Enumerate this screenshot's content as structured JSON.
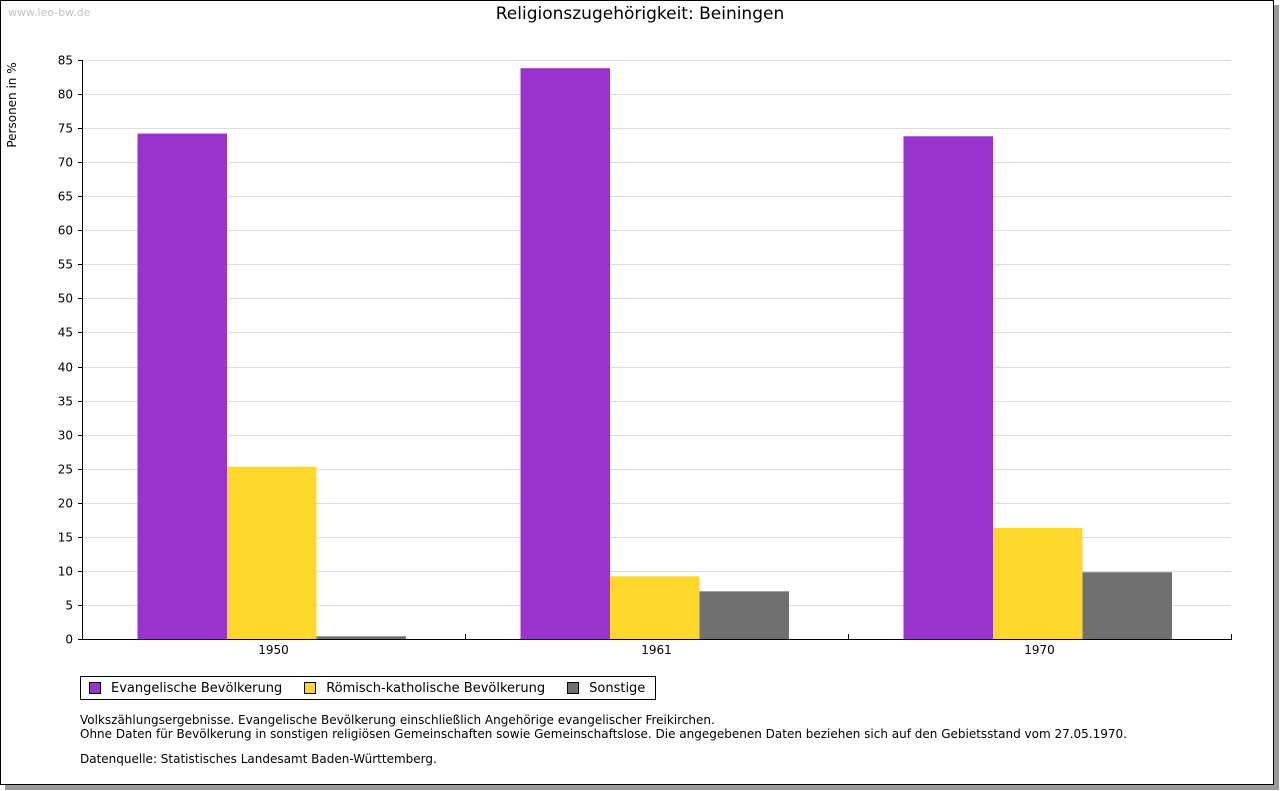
{
  "watermark": "www.leo-bw.de",
  "colors": {
    "evangelisch": "#9933cc",
    "katholisch": "#fdd72c",
    "sonstige": "#707070",
    "grid": "#dddddd"
  },
  "chart_data": {
    "type": "bar",
    "title": "Religionszugehörigkeit: Beiningen",
    "xlabel": "",
    "ylabel": "Personen in %",
    "ylim": [
      0,
      85
    ],
    "ytick_step": 5,
    "grid": true,
    "categories": [
      "1950",
      "1961",
      "1970"
    ],
    "series": [
      {
        "name": "Evangelische Bevölkerung",
        "color": "#9933cc",
        "values": [
          74.2,
          83.8,
          73.8
        ]
      },
      {
        "name": "Römisch-katholische Bevölkerung",
        "color": "#fdd72c",
        "values": [
          25.3,
          9.2,
          16.3
        ]
      },
      {
        "name": "Sonstige",
        "color": "#707070",
        "values": [
          0.4,
          7.0,
          9.8
        ]
      }
    ],
    "legend_position": "bottom-left"
  },
  "notes": {
    "line1": "Volkszählungsergebnisse. Evangelische Bevölkerung einschließlich Angehörige evangelischer Freikirchen.",
    "line2": "Ohne Daten für Bevölkerung in sonstigen religiösen Gemeinschaften sowie Gemeinschaftslose. Die angegebenen Daten beziehen sich auf den Gebietsstand vom 27.05.1970.",
    "source": "Datenquelle: Statistisches Landesamt Baden-Württemberg."
  }
}
